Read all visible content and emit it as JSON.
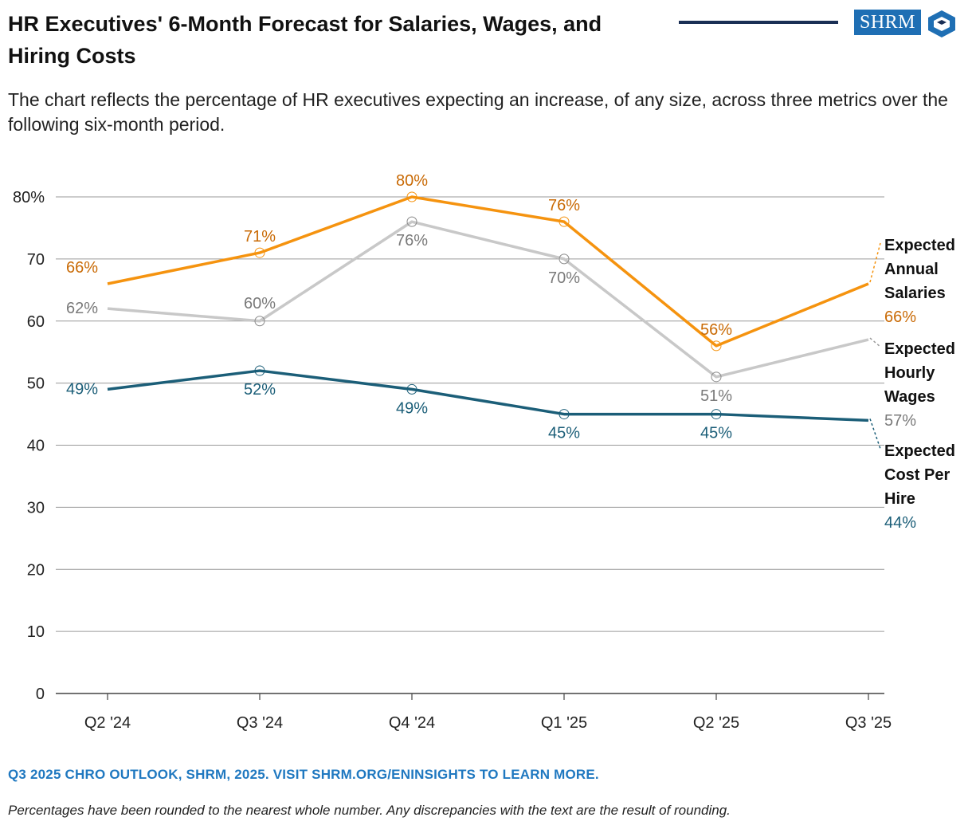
{
  "title": "HR Executives' 6-Month Forecast for Salaries, Wages, and Hiring Costs",
  "subtitle": "The chart reflects the percentage of HR executives expecting an increase, of any size, across three metrics over the following six-month period.",
  "brand": {
    "logo_text": "SHRM",
    "accent": "#1f6fb4",
    "rule_color": "#1a2f55"
  },
  "chart_data": {
    "type": "line",
    "categories": [
      "Q2 '24",
      "Q3 '24",
      "Q4 '24",
      "Q1 '25",
      "Q2 '25",
      "Q3 '25"
    ],
    "ylim": [
      0,
      80
    ],
    "yticks": [
      0,
      10,
      20,
      30,
      40,
      50,
      60,
      70,
      80
    ],
    "ytick_labels": [
      "0",
      "10",
      "20",
      "30",
      "40",
      "50",
      "60",
      "70",
      "80%"
    ],
    "grid": true,
    "xlabel": "",
    "ylabel": "",
    "series": [
      {
        "name": "Expected Annual Salaries",
        "name_lines": [
          "Expected",
          "Annual",
          "Salaries"
        ],
        "color": "#f5930f",
        "label_color": "#c96a05",
        "values": [
          66,
          71,
          80,
          76,
          56,
          66
        ],
        "labels": [
          "66%",
          "71%",
          "80%",
          "76%",
          "56%",
          "66%"
        ]
      },
      {
        "name": "Expected Hourly Wages",
        "name_lines": [
          "Expected",
          "Hourly",
          "Wages"
        ],
        "color": "#c8c8c8",
        "label_color": "#7a7a7a",
        "values": [
          62,
          60,
          76,
          70,
          51,
          57
        ],
        "labels": [
          "62%",
          "60%",
          "76%",
          "70%",
          "51%",
          "57%"
        ]
      },
      {
        "name": "Expected Cost Per Hire",
        "name_lines": [
          "Expected",
          "Cost Per",
          "Hire"
        ],
        "color": "#1b5e78",
        "label_color": "#1b5e78",
        "values": [
          49,
          52,
          49,
          45,
          45,
          44
        ],
        "labels": [
          "49%",
          "52%",
          "49%",
          "45%",
          "45%",
          "44%"
        ]
      }
    ]
  },
  "footer": {
    "source": "Q3 2025 CHRO OUTLOOK, SHRM, 2025. VISIT SHRM.ORG/ENINSIGHTS TO LEARN MORE.",
    "note": "Percentages have been rounded to the nearest whole number. Any discrepancies with the text are the result of rounding."
  }
}
